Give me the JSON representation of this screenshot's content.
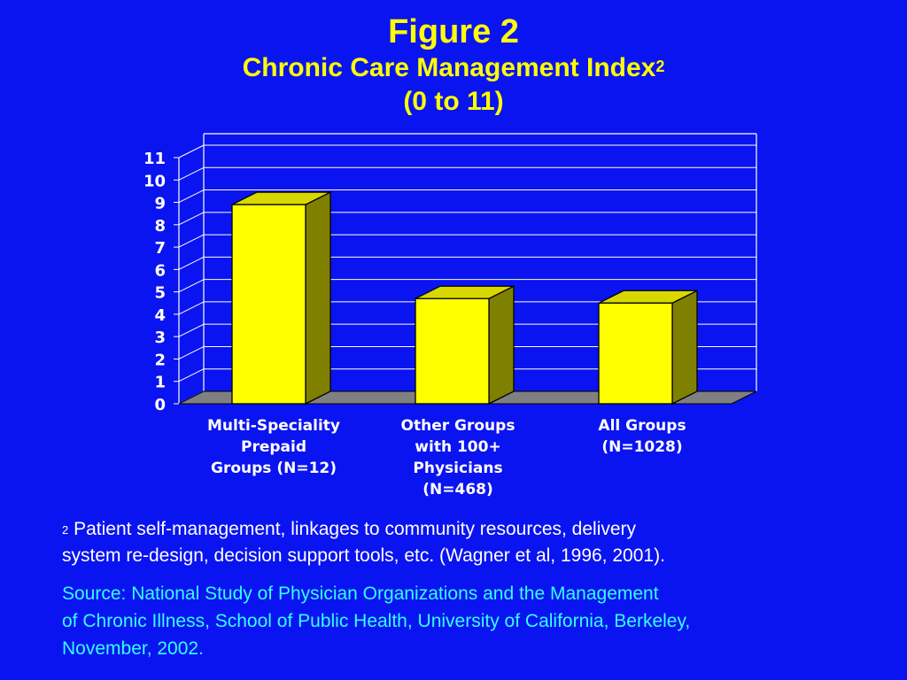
{
  "slide": {
    "figure_label": "Figure 2",
    "title": "Chronic Care Management Index",
    "title_sup": "2",
    "subtitle": "(0 to 11)",
    "footnote_marker": "2",
    "footnote_line1": "Patient self-management, linkages to community resources, delivery",
    "footnote_line2": "system re-design, decision support tools, etc. (Wagner et al, 1996, 2001).",
    "source_line1": "Source:  National Study of Physician Organizations and the Management",
    "source_line2": "of Chronic Illness, School of Public Health, University of California, Berkeley,",
    "source_line3": "November, 2002."
  },
  "colors": {
    "background": "#0a14f0",
    "title": "#ffff00",
    "bar_front": "#ffff00",
    "bar_top": "#d8d800",
    "bar_side": "#808000",
    "floor": "#808080",
    "source_text": "#33ffff",
    "grid": "#ffffff"
  },
  "chart_data": {
    "type": "bar",
    "title": "Chronic Care Management Index",
    "categories": [
      [
        "Multi-Speciality",
        "Prepaid",
        "Groups (N=12)"
      ],
      [
        "Other Groups",
        "with 100+",
        "Physicians",
        "(N=468)"
      ],
      [
        "All Groups",
        "(N=1028)"
      ]
    ],
    "values": [
      8.9,
      4.7,
      4.5
    ],
    "ylim": [
      0,
      11
    ],
    "yticks": [
      "0",
      "1",
      "2",
      "3",
      "4",
      "5",
      "6",
      "7",
      "8",
      "9",
      "10",
      "11"
    ],
    "grid": true,
    "legend": "none",
    "style": "3d"
  }
}
